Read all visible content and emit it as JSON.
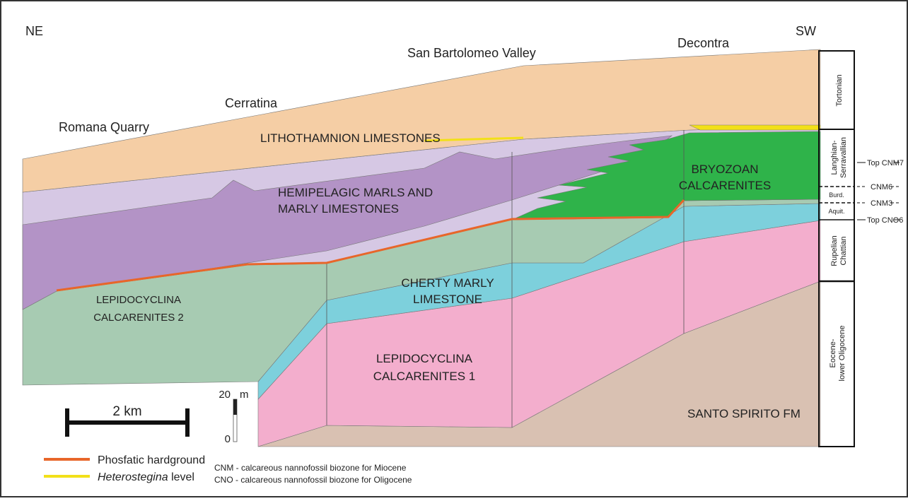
{
  "orientation": {
    "left": "NE",
    "right": "SW"
  },
  "localities": [
    "Romana Quarry",
    "Cerratina",
    "San Bartolomeo Valley",
    "Decontra"
  ],
  "units": {
    "lithothamnion": [
      "LITHOTHAMNION LIMESTONES"
    ],
    "hemipelagic": [
      "HEMIPELAGIC  MARLS AND",
      "MARLY LIMESTONES"
    ],
    "bryozoan": [
      "BRYOZOAN",
      "CALCARENITES"
    ],
    "cherty": [
      "CHERTY MARLY",
      "LIMESTONE"
    ],
    "lepidocyclina2": [
      "LEPIDOCYCLINA",
      "CALCARENITES 2"
    ],
    "lepidocyclina1": [
      "LEPIDOCYCLINA",
      "CALCARENITES 1"
    ],
    "santo_spirito": [
      "SANTO SPIRITO FM"
    ]
  },
  "stages": [
    [
      "Tortonian"
    ],
    [
      "Langhian-",
      "Serravallian"
    ],
    [
      "Burd."
    ],
    [
      "Aquit."
    ],
    [
      "Rupelian",
      "Chattian"
    ],
    [
      "Eocene-",
      "lower Oligocene"
    ]
  ],
  "biozones": [
    "Top CNM7",
    "CNM6",
    "CNM3",
    "Top CNO6"
  ],
  "scale": {
    "horizontal": "2 km",
    "vertical_top": "20",
    "vertical_unit": "m",
    "vertical_bottom": "0"
  },
  "legend": {
    "hardground": "Phosfatic hardground",
    "heterostegina_name": "Heterostegina",
    "heterostegina_rest": " level"
  },
  "notes": [
    "CNM - calcareous nannofossil biozone for Miocene",
    "CNO - calcareous nannofossil biozone for Oligocene"
  ]
}
